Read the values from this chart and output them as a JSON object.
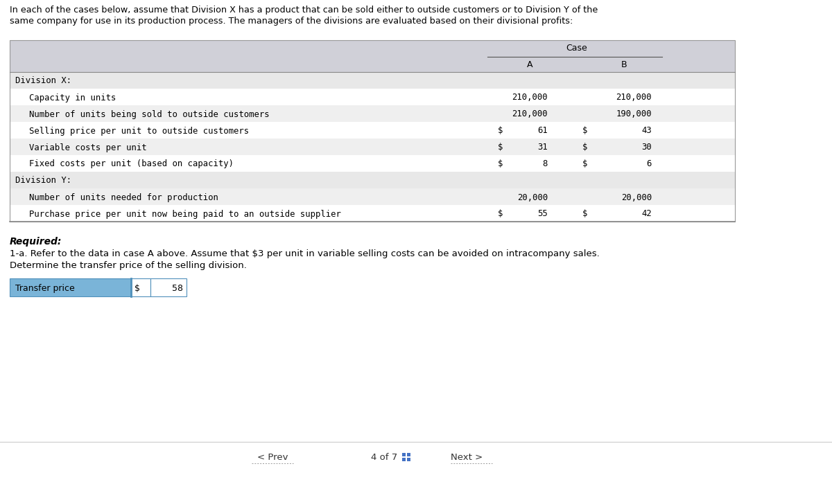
{
  "header_line1": "In each of the cases below, assume that Division X has a product that can be sold either to outside customers or to Division Y of the",
  "header_line2": "same company for use in its production process. The managers of the divisions are evaluated based on their divisional profits:",
  "table": {
    "header_row1_label": "Case",
    "header_col_A": "A",
    "header_col_B": "B",
    "rows": [
      {
        "label": "Division X:",
        "indent": 0,
        "valA": "",
        "valB": "",
        "dollarA": false,
        "dollarB": false,
        "section_header": true,
        "row_bg": "#e8e8e8"
      },
      {
        "label": "Capacity in units",
        "indent": 1,
        "valA": "210,000",
        "valB": "210,000",
        "dollarA": false,
        "dollarB": false,
        "section_header": false,
        "row_bg": "#ffffff"
      },
      {
        "label": "Number of units being sold to outside customers",
        "indent": 1,
        "valA": "210,000",
        "valB": "190,000",
        "dollarA": false,
        "dollarB": false,
        "section_header": false,
        "row_bg": "#efefef"
      },
      {
        "label": "Selling price per unit to outside customers",
        "indent": 1,
        "valA": "61",
        "valB": "43",
        "dollarA": true,
        "dollarB": true,
        "section_header": false,
        "row_bg": "#ffffff"
      },
      {
        "label": "Variable costs per unit",
        "indent": 1,
        "valA": "31",
        "valB": "30",
        "dollarA": true,
        "dollarB": true,
        "section_header": false,
        "row_bg": "#efefef"
      },
      {
        "label": "Fixed costs per unit (based on capacity)",
        "indent": 1,
        "valA": "8",
        "valB": "6",
        "dollarA": true,
        "dollarB": true,
        "section_header": false,
        "row_bg": "#ffffff"
      },
      {
        "label": "Division Y:",
        "indent": 0,
        "valA": "",
        "valB": "",
        "dollarA": false,
        "dollarB": false,
        "section_header": true,
        "row_bg": "#e8e8e8"
      },
      {
        "label": "Number of units needed for production",
        "indent": 1,
        "valA": "20,000",
        "valB": "20,000",
        "dollarA": false,
        "dollarB": false,
        "section_header": false,
        "row_bg": "#efefef"
      },
      {
        "label": "Purchase price per unit now being paid to an outside supplier",
        "indent": 1,
        "valA": "55",
        "valB": "42",
        "dollarA": true,
        "dollarB": true,
        "section_header": false,
        "row_bg": "#ffffff"
      }
    ]
  },
  "required_label": "Required:",
  "required_text1": "1-a. Refer to the data in case A above. Assume that $3 per unit in variable selling costs can be avoided on intracompany sales.",
  "required_text2": "Determine the transfer price of the selling division.",
  "transfer_label": "Transfer price",
  "transfer_dollar": "$",
  "transfer_value": "58",
  "nav_prev": "< Prev",
  "nav_text": "4 of 7",
  "nav_next": "Next >",
  "bg_color": "#ffffff",
  "table_header_bg": "#d0d0d8",
  "transfer_label_bg": "#7ab4d8",
  "mono_font": "DejaVu Sans Mono",
  "body_font": "DejaVu Sans"
}
